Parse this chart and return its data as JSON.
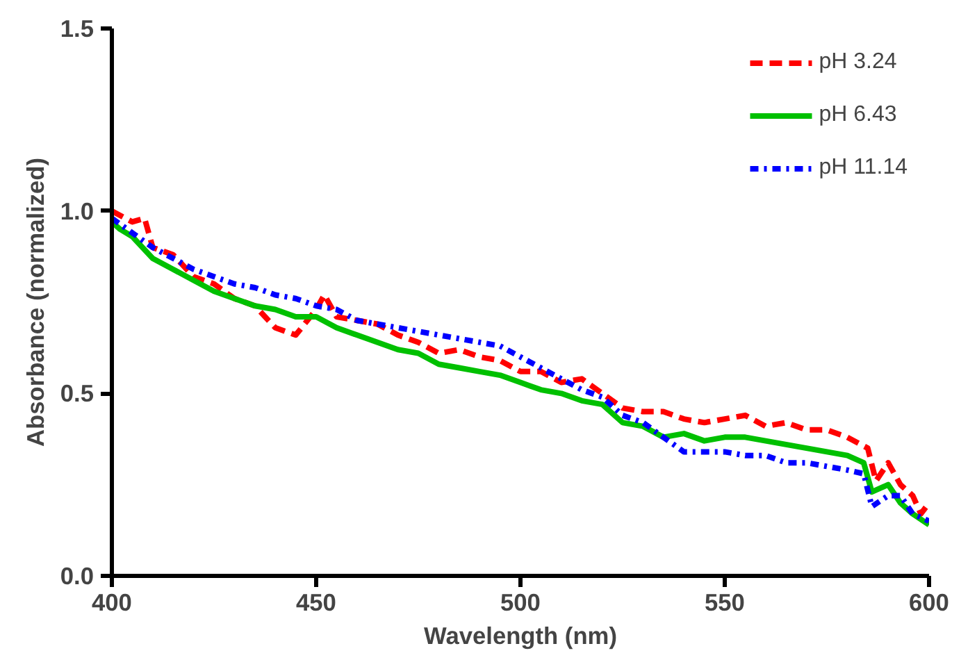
{
  "chart_data": {
    "type": "line",
    "xlabel": "Wavelength (nm)",
    "ylabel": "Absorbance (normalized)",
    "xlim": [
      400,
      600
    ],
    "ylim": [
      0,
      1.5
    ],
    "xticks": [
      400,
      450,
      500,
      550,
      600
    ],
    "yticks": [
      {
        "value": 0,
        "label": "0.0"
      },
      {
        "value": 0.5,
        "label": "0.5"
      },
      {
        "value": 1,
        "label": "1.0"
      },
      {
        "value": 1.5,
        "label": "1.5"
      }
    ],
    "grid": false,
    "legend": "top right",
    "marker": "none",
    "series": [
      {
        "name": "pH 3.24",
        "color": "#ff0000",
        "line_style": "dashed",
        "x": [
          400,
          405,
          408,
          410,
          415,
          420,
          425,
          430,
          435,
          440,
          445,
          450,
          452,
          455,
          460,
          465,
          470,
          475,
          480,
          485,
          490,
          495,
          500,
          505,
          510,
          515,
          520,
          525,
          530,
          535,
          540,
          545,
          550,
          555,
          560,
          565,
          570,
          575,
          580,
          585,
          587,
          590,
          593,
          596,
          598,
          600
        ],
        "values": [
          1.0,
          0.97,
          0.98,
          0.9,
          0.88,
          0.82,
          0.8,
          0.76,
          0.74,
          0.68,
          0.66,
          0.73,
          0.77,
          0.71,
          0.7,
          0.69,
          0.66,
          0.64,
          0.61,
          0.62,
          0.6,
          0.59,
          0.56,
          0.56,
          0.53,
          0.54,
          0.5,
          0.46,
          0.45,
          0.45,
          0.43,
          0.42,
          0.43,
          0.44,
          0.41,
          0.42,
          0.4,
          0.4,
          0.38,
          0.35,
          0.26,
          0.31,
          0.25,
          0.22,
          0.17,
          0.2
        ]
      },
      {
        "name": "pH 6.43",
        "color": "#00c000",
        "line_style": "solid",
        "x": [
          400,
          402,
          405,
          410,
          415,
          420,
          425,
          430,
          435,
          440,
          445,
          450,
          455,
          460,
          465,
          470,
          475,
          480,
          485,
          490,
          495,
          500,
          505,
          510,
          515,
          520,
          525,
          530,
          535,
          540,
          545,
          550,
          555,
          560,
          565,
          570,
          575,
          580,
          584,
          586,
          590,
          593,
          596,
          600
        ],
        "values": [
          0.97,
          0.95,
          0.93,
          0.87,
          0.84,
          0.81,
          0.78,
          0.76,
          0.74,
          0.73,
          0.71,
          0.71,
          0.68,
          0.66,
          0.64,
          0.62,
          0.61,
          0.58,
          0.57,
          0.56,
          0.55,
          0.53,
          0.51,
          0.5,
          0.48,
          0.47,
          0.42,
          0.41,
          0.38,
          0.39,
          0.37,
          0.38,
          0.38,
          0.37,
          0.36,
          0.35,
          0.34,
          0.33,
          0.31,
          0.23,
          0.25,
          0.2,
          0.17,
          0.14
        ]
      },
      {
        "name": "pH 11.14",
        "color": "#0000ff",
        "line_style": "dotted",
        "x": [
          400,
          405,
          410,
          415,
          420,
          425,
          430,
          435,
          440,
          445,
          450,
          455,
          460,
          465,
          470,
          475,
          480,
          485,
          490,
          495,
          500,
          505,
          510,
          515,
          520,
          525,
          530,
          535,
          540,
          545,
          550,
          555,
          560,
          565,
          570,
          575,
          580,
          584,
          586,
          590,
          593,
          596,
          600
        ],
        "values": [
          0.98,
          0.94,
          0.9,
          0.87,
          0.84,
          0.82,
          0.8,
          0.79,
          0.77,
          0.76,
          0.74,
          0.73,
          0.7,
          0.69,
          0.68,
          0.67,
          0.66,
          0.65,
          0.64,
          0.63,
          0.6,
          0.57,
          0.54,
          0.51,
          0.49,
          0.44,
          0.42,
          0.38,
          0.34,
          0.34,
          0.34,
          0.33,
          0.33,
          0.31,
          0.31,
          0.3,
          0.29,
          0.28,
          0.19,
          0.22,
          0.22,
          0.17,
          0.15
        ]
      }
    ]
  }
}
